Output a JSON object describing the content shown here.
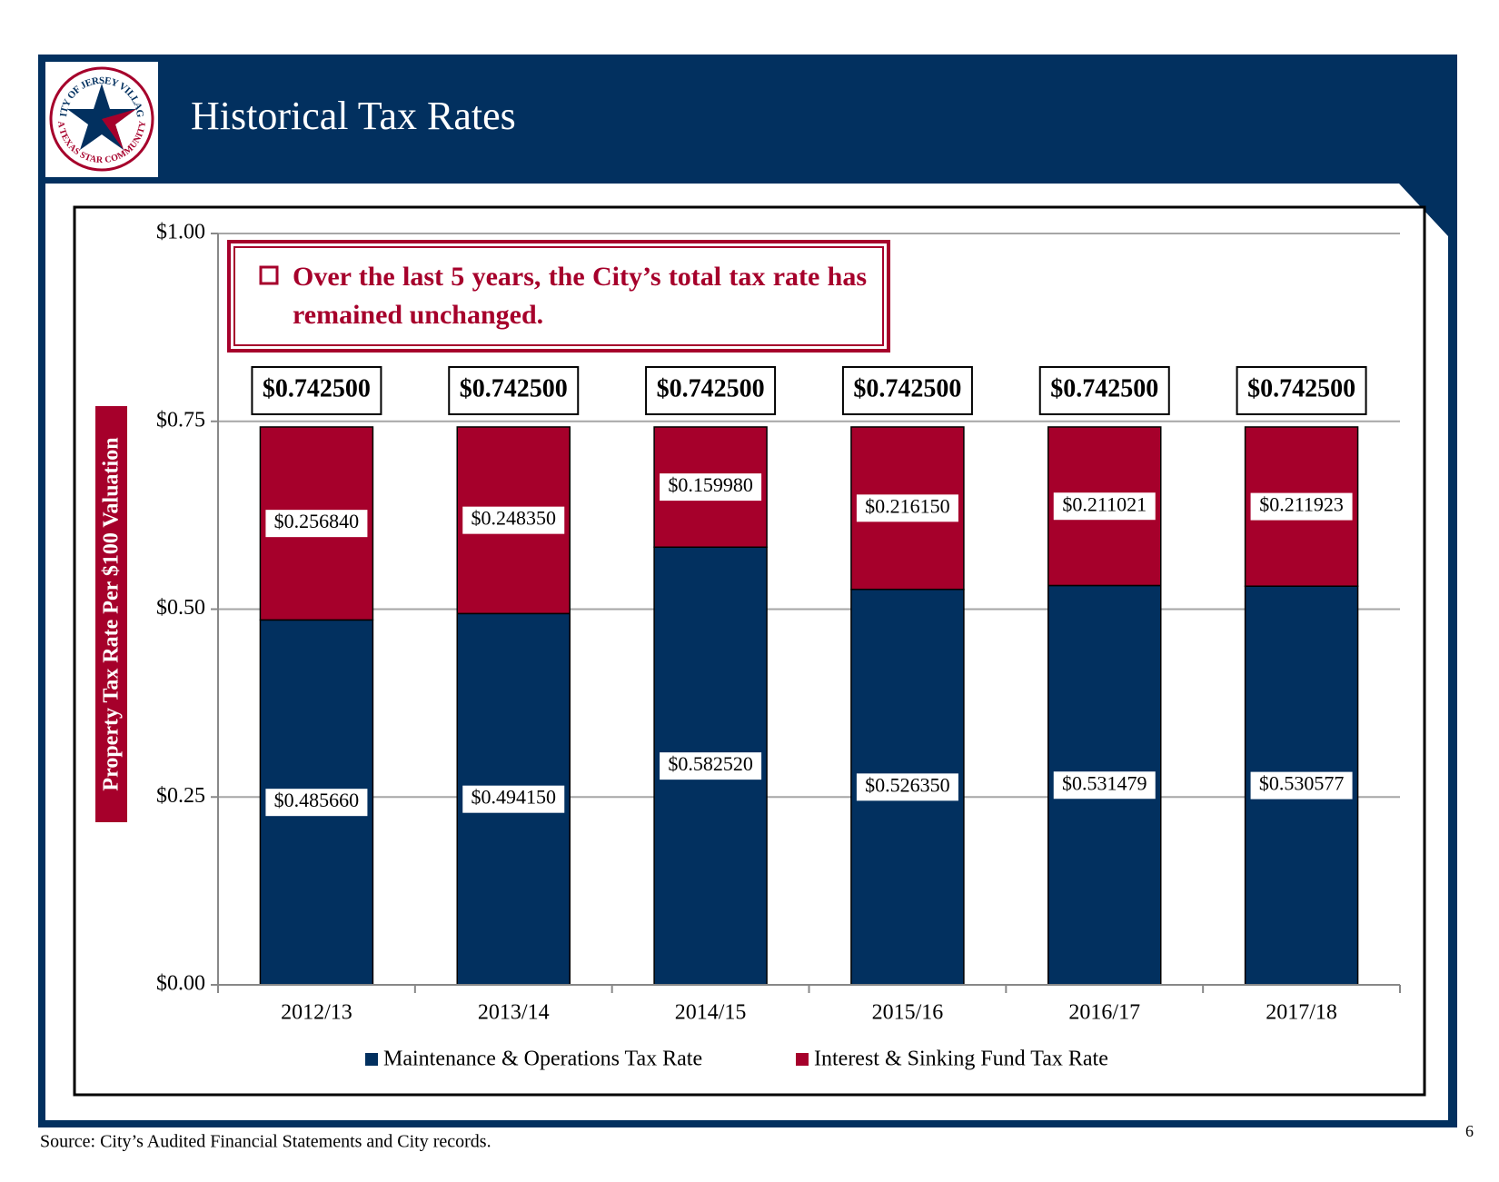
{
  "chart_data": {
    "type": "stacked_bar",
    "title": "Historical Tax Rates",
    "annotation": "Over the last 5 years, the City’s total tax rate has remained unchanged.",
    "ylabel": "Property Tax Rate Per $100 Valuation",
    "categories": [
      "2012/13",
      "2013/14",
      "2014/15",
      "2015/16",
      "2016/17",
      "2017/18"
    ],
    "series": [
      {
        "name": "Maintenance & Operations Tax Rate",
        "color": "#02305f",
        "values": [
          0.48566,
          0.49415,
          0.58252,
          0.52635,
          0.531479,
          0.530577
        ],
        "value_labels": [
          "$0.485660",
          "$0.494150",
          "$0.582520",
          "$0.526350",
          "$0.531479",
          "$0.530577"
        ]
      },
      {
        "name": "Interest & Sinking Fund Tax Rate",
        "color": "#a6002b",
        "values": [
          0.25684,
          0.24835,
          0.15998,
          0.21615,
          0.211021,
          0.211923
        ],
        "value_labels": [
          "$0.256840",
          "$0.248350",
          "$0.159980",
          "$0.216150",
          "$0.211021",
          "$0.211923"
        ]
      }
    ],
    "totals": [
      0.7425,
      0.7425,
      0.7425,
      0.7425,
      0.7425,
      0.7425
    ],
    "total_labels": [
      "$0.742500",
      "$0.742500",
      "$0.742500",
      "$0.742500",
      "$0.742500",
      "$0.742500"
    ],
    "ylim": [
      0,
      1
    ],
    "yticks": [
      {
        "value": 0,
        "label": "$0.00"
      },
      {
        "value": 0.25,
        "label": "$0.25"
      },
      {
        "value": 0.5,
        "label": "$0.50"
      },
      {
        "value": 0.75,
        "label": "$0.75"
      },
      {
        "value": 1,
        "label": "$1.00"
      }
    ],
    "grid": true,
    "legend": "bottom"
  },
  "logo": {
    "top": "CITY OF JERSEY VILLAGE",
    "bottom": "A TEXAS STAR COMMUNITY"
  },
  "source": "Source: City’s Audited Financial Statements and City records.",
  "page_number": "6"
}
